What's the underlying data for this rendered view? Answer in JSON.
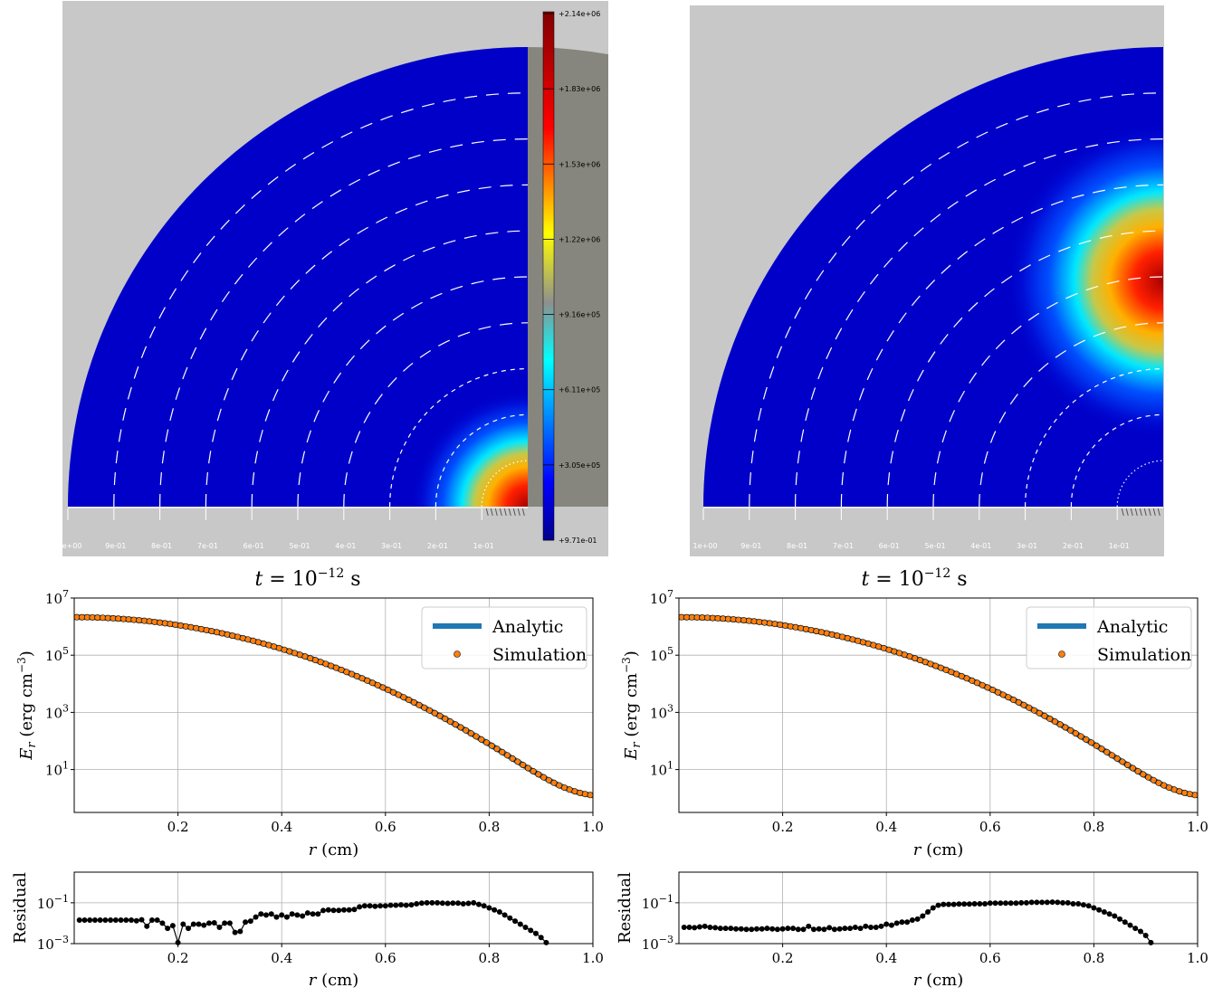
{
  "panels": [
    {
      "id": "left",
      "time_label": "t = 10",
      "time_exp": "−12",
      "time_unit": " s",
      "render": {
        "blob_center_r": 0.0,
        "radial_tick_labels": [
          "1e+00",
          "9e-01",
          "8e-01",
          "7e-01",
          "6e-01",
          "5e-01",
          "4e-01",
          "3e-01",
          "2e-01",
          "1e-01"
        ],
        "colorbar": {
          "labels": [
            "+2.14e+06",
            "+1.83e+06",
            "+1.53e+06",
            "+1.22e+06",
            "+9.16e+05",
            "+6.11e+05",
            "+3.05e+05",
            "+9.71e-01"
          ]
        }
      }
    },
    {
      "id": "right",
      "time_label": "t = 10",
      "time_exp": "−12",
      "time_unit": " s",
      "render": {
        "blob_center_r": 0.5,
        "radial_tick_labels": [
          "1e+00",
          "9e-01",
          "8e-01",
          "7e-01",
          "6e-01",
          "5e-01",
          "4e-01",
          "3e-01",
          "2e-01",
          "1e-01"
        ]
      }
    }
  ],
  "chart_data": [
    {
      "type": "line",
      "panel": "left-main",
      "xlabel": "r (cm)",
      "ylabel": "E_r (erg cm^-3)",
      "xlim": [
        0.0,
        1.0
      ],
      "ylim_log10": [
        -0.5,
        7
      ],
      "yscale": "log",
      "grid": true,
      "legend_position": "top-right",
      "x_ticks": [
        "0.2",
        "0.4",
        "0.6",
        "0.8",
        "1.0"
      ],
      "y_ticks": [
        "10^1",
        "10^3",
        "10^5",
        "10^7"
      ],
      "series": [
        {
          "name": "Analytic",
          "style": "line",
          "color": "#1f77b4",
          "model": {
            "peak_log10": 6.33,
            "floor_log10": 0.0,
            "width": 0.25,
            "exp": 2
          }
        },
        {
          "name": "Simulation",
          "style": "markers",
          "color": "#ff7f0e",
          "points": 100
        }
      ]
    },
    {
      "type": "scatter",
      "panel": "left-residual",
      "xlabel": "r (cm)",
      "ylabel": "Residual",
      "xlim": [
        0.0,
        1.0
      ],
      "ylim_log10": [
        -3,
        0.5
      ],
      "yscale": "log",
      "grid": true,
      "x_ticks": [
        "0.2",
        "0.4",
        "0.6",
        "0.8",
        "1.0"
      ],
      "y_ticks": [
        "10^-3",
        "10^-1"
      ],
      "x": [
        0.01,
        0.02,
        0.03,
        0.04,
        0.05,
        0.06,
        0.07,
        0.08,
        0.09,
        0.1,
        0.11,
        0.12,
        0.13,
        0.14,
        0.15,
        0.16,
        0.17,
        0.18,
        0.19,
        0.2,
        0.21,
        0.22,
        0.23,
        0.24,
        0.25,
        0.26,
        0.27,
        0.28,
        0.29,
        0.3,
        0.31,
        0.32,
        0.33,
        0.34,
        0.35,
        0.36,
        0.37,
        0.38,
        0.39,
        0.4,
        0.41,
        0.42,
        0.43,
        0.44,
        0.45,
        0.46,
        0.47,
        0.48,
        0.49,
        0.5,
        0.51,
        0.52,
        0.53,
        0.54,
        0.55,
        0.56,
        0.57,
        0.58,
        0.59,
        0.6,
        0.61,
        0.62,
        0.63,
        0.64,
        0.65,
        0.66,
        0.67,
        0.68,
        0.69,
        0.7,
        0.71,
        0.72,
        0.73,
        0.74,
        0.75,
        0.76,
        0.77,
        0.78,
        0.79,
        0.8,
        0.81,
        0.82,
        0.83,
        0.84,
        0.85,
        0.86,
        0.87,
        0.88,
        0.89,
        0.9,
        0.91
      ],
      "y_log10": [
        -1.85,
        -1.85,
        -1.85,
        -1.85,
        -1.85,
        -1.85,
        -1.85,
        -1.85,
        -1.85,
        -1.85,
        -1.85,
        -1.88,
        -1.83,
        -2.15,
        -1.85,
        -1.85,
        -2.0,
        -2.25,
        -2.12,
        -2.95,
        -2.05,
        -2.25,
        -2.05,
        -2.05,
        -2.1,
        -2.0,
        -1.98,
        -2.2,
        -2.0,
        -2.0,
        -2.45,
        -2.4,
        -1.95,
        -1.9,
        -1.7,
        -1.55,
        -1.6,
        -1.55,
        -1.7,
        -1.6,
        -1.7,
        -1.55,
        -1.6,
        -1.65,
        -1.5,
        -1.55,
        -1.55,
        -1.38,
        -1.35,
        -1.37,
        -1.37,
        -1.35,
        -1.35,
        -1.33,
        -1.2,
        -1.15,
        -1.15,
        -1.17,
        -1.15,
        -1.15,
        -1.12,
        -1.12,
        -1.1,
        -1.12,
        -1.1,
        -1.05,
        -1.02,
        -1.0,
        -1.0,
        -1.0,
        -1.02,
        -1.03,
        -1.02,
        -1.02,
        -1.05,
        -1.03,
        -1.0,
        -1.08,
        -1.15,
        -1.25,
        -1.35,
        -1.45,
        -1.6,
        -1.75,
        -1.9,
        -2.05,
        -2.2,
        -2.35,
        -2.5,
        -2.7,
        -2.95
      ]
    },
    {
      "type": "line",
      "panel": "right-main",
      "xlabel": "r (cm)",
      "ylabel": "E_r (erg cm^-3)",
      "xlim": [
        0.0,
        1.0
      ],
      "ylim_log10": [
        -0.5,
        7
      ],
      "yscale": "log",
      "grid": true,
      "legend_position": "top-right",
      "x_ticks": [
        "0.2",
        "0.4",
        "0.6",
        "0.8",
        "1.0"
      ],
      "y_ticks": [
        "10^1",
        "10^3",
        "10^5",
        "10^7"
      ],
      "series": [
        {
          "name": "Analytic",
          "style": "line",
          "color": "#1f77b4",
          "model": {
            "peak_log10": 6.33,
            "floor_log10": 0.0,
            "width": 0.25,
            "exp": 2
          }
        },
        {
          "name": "Simulation",
          "style": "markers",
          "color": "#ff7f0e",
          "points": 100
        }
      ]
    },
    {
      "type": "scatter",
      "panel": "right-residual",
      "xlabel": "r (cm)",
      "ylabel": "Residual",
      "xlim": [
        0.0,
        1.0
      ],
      "ylim_log10": [
        -3,
        0.5
      ],
      "yscale": "log",
      "grid": true,
      "x_ticks": [
        "0.2",
        "0.4",
        "0.6",
        "0.8",
        "1.0"
      ],
      "y_ticks": [
        "10^-3",
        "10^-1"
      ],
      "x": [
        0.01,
        0.02,
        0.03,
        0.04,
        0.05,
        0.06,
        0.07,
        0.08,
        0.09,
        0.1,
        0.11,
        0.12,
        0.13,
        0.14,
        0.15,
        0.16,
        0.17,
        0.18,
        0.19,
        0.2,
        0.21,
        0.22,
        0.23,
        0.24,
        0.25,
        0.26,
        0.27,
        0.28,
        0.29,
        0.3,
        0.31,
        0.32,
        0.33,
        0.34,
        0.35,
        0.36,
        0.37,
        0.38,
        0.39,
        0.4,
        0.41,
        0.42,
        0.43,
        0.44,
        0.45,
        0.46,
        0.47,
        0.48,
        0.49,
        0.5,
        0.51,
        0.52,
        0.53,
        0.54,
        0.55,
        0.56,
        0.57,
        0.58,
        0.59,
        0.6,
        0.61,
        0.62,
        0.63,
        0.64,
        0.65,
        0.66,
        0.67,
        0.68,
        0.69,
        0.7,
        0.71,
        0.72,
        0.73,
        0.74,
        0.75,
        0.76,
        0.77,
        0.78,
        0.79,
        0.8,
        0.81,
        0.82,
        0.83,
        0.84,
        0.85,
        0.86,
        0.87,
        0.88,
        0.89,
        0.9,
        0.91
      ],
      "y_log10": [
        -2.2,
        -2.2,
        -2.22,
        -2.18,
        -2.15,
        -2.2,
        -2.22,
        -2.25,
        -2.25,
        -2.25,
        -2.28,
        -2.28,
        -2.3,
        -2.3,
        -2.28,
        -2.28,
        -2.25,
        -2.28,
        -2.3,
        -2.28,
        -2.25,
        -2.25,
        -2.3,
        -2.3,
        -2.15,
        -2.3,
        -2.28,
        -2.3,
        -2.22,
        -2.3,
        -2.28,
        -2.25,
        -2.25,
        -2.2,
        -2.25,
        -2.15,
        -2.2,
        -2.2,
        -2.15,
        -2.05,
        -2.1,
        -2.0,
        -1.95,
        -1.95,
        -1.85,
        -1.8,
        -1.65,
        -1.45,
        -1.25,
        -1.12,
        -1.08,
        -1.08,
        -1.08,
        -1.06,
        -1.06,
        -1.06,
        -1.05,
        -1.05,
        -1.05,
        -1.02,
        -1.02,
        -1.02,
        -1.02,
        -1.02,
        -1.02,
        -1.0,
        -1.0,
        -0.98,
        -0.98,
        -0.98,
        -0.98,
        -0.97,
        -0.98,
        -1.0,
        -1.0,
        -1.05,
        -1.05,
        -1.1,
        -1.15,
        -1.25,
        -1.35,
        -1.45,
        -1.55,
        -1.65,
        -1.8,
        -1.95,
        -2.1,
        -2.25,
        -2.4,
        -2.6,
        -2.95
      ]
    }
  ]
}
